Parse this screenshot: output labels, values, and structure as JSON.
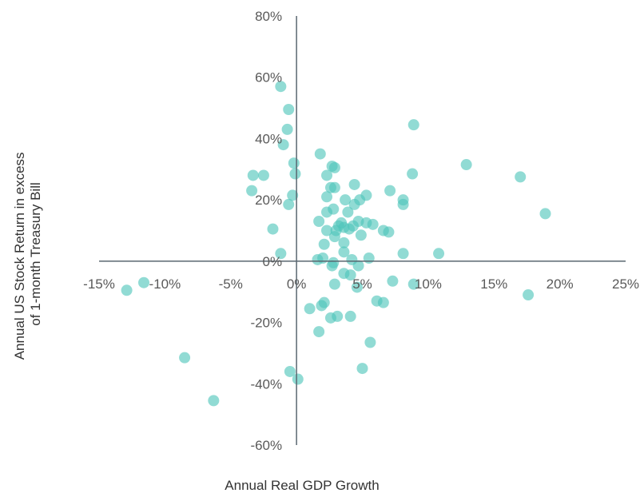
{
  "chart_data": {
    "type": "scatter",
    "title": "",
    "xlabel": "Annual Real GDP Growth",
    "ylabel_lines": [
      "Annual US Stock Return in excess",
      "of 1-month Treasury Bill"
    ],
    "xlim": [
      -15,
      25
    ],
    "ylim": [
      -60,
      80
    ],
    "x_ticks": [
      -15,
      -10,
      -5,
      0,
      5,
      10,
      15,
      20,
      25
    ],
    "y_ticks": [
      80,
      60,
      40,
      20,
      0,
      -20,
      -40,
      -60
    ],
    "x_tick_labels": [
      "-15%",
      "-10%",
      "-5%",
      "0%",
      "5%",
      "10%",
      "15%",
      "20%",
      "25%"
    ],
    "y_tick_labels": [
      "80%",
      "60%",
      "40%",
      "20%",
      "0%",
      "-20%",
      "-40%",
      "-60%"
    ],
    "grid": false,
    "legend": "none",
    "colors": {
      "point": "#4ec5b9",
      "axis": "#5a6770",
      "text": "#595959"
    },
    "points": [
      {
        "x": -1.2,
        "y": 57
      },
      {
        "x": -0.6,
        "y": 49.5
      },
      {
        "x": -0.7,
        "y": 43
      },
      {
        "x": 8.9,
        "y": 44.5
      },
      {
        "x": -1.0,
        "y": 38
      },
      {
        "x": 1.8,
        "y": 35
      },
      {
        "x": -0.2,
        "y": 32
      },
      {
        "x": 12.9,
        "y": 31.5
      },
      {
        "x": 2.7,
        "y": 31
      },
      {
        "x": 2.9,
        "y": 30.5
      },
      {
        "x": -3.3,
        "y": 28
      },
      {
        "x": -2.5,
        "y": 28
      },
      {
        "x": -0.1,
        "y": 28.5
      },
      {
        "x": 2.3,
        "y": 28
      },
      {
        "x": 8.8,
        "y": 28.5
      },
      {
        "x": 17.0,
        "y": 27.5
      },
      {
        "x": 4.4,
        "y": 25
      },
      {
        "x": 2.6,
        "y": 24
      },
      {
        "x": 2.9,
        "y": 24
      },
      {
        "x": -3.4,
        "y": 23
      },
      {
        "x": 7.1,
        "y": 23
      },
      {
        "x": -0.3,
        "y": 21.5
      },
      {
        "x": 2.3,
        "y": 21
      },
      {
        "x": 5.3,
        "y": 21.5
      },
      {
        "x": 3.7,
        "y": 20
      },
      {
        "x": 4.8,
        "y": 20
      },
      {
        "x": 8.1,
        "y": 20
      },
      {
        "x": 4.4,
        "y": 18.5
      },
      {
        "x": -0.6,
        "y": 18.5
      },
      {
        "x": 8.1,
        "y": 18.5
      },
      {
        "x": 2.3,
        "y": 16
      },
      {
        "x": 2.8,
        "y": 17
      },
      {
        "x": 3.9,
        "y": 16
      },
      {
        "x": 18.9,
        "y": 15.5
      },
      {
        "x": 1.7,
        "y": 13
      },
      {
        "x": 3.4,
        "y": 12.5
      },
      {
        "x": 4.7,
        "y": 13
      },
      {
        "x": 5.3,
        "y": 12.5
      },
      {
        "x": 5.8,
        "y": 12
      },
      {
        "x": 3.2,
        "y": 11.5
      },
      {
        "x": 3.6,
        "y": 11
      },
      {
        "x": 4.3,
        "y": 11.5
      },
      {
        "x": 2.3,
        "y": 10
      },
      {
        "x": 3.0,
        "y": 10
      },
      {
        "x": 4.0,
        "y": 10.5
      },
      {
        "x": 6.6,
        "y": 10
      },
      {
        "x": 7.0,
        "y": 9.5
      },
      {
        "x": -1.8,
        "y": 10.5
      },
      {
        "x": 2.9,
        "y": 8
      },
      {
        "x": 4.9,
        "y": 8.5
      },
      {
        "x": 2.1,
        "y": 5.5
      },
      {
        "x": 3.6,
        "y": 6
      },
      {
        "x": -1.2,
        "y": 2.5
      },
      {
        "x": 3.6,
        "y": 3
      },
      {
        "x": 8.1,
        "y": 2.5
      },
      {
        "x": 10.8,
        "y": 2.5
      },
      {
        "x": 1.6,
        "y": 0.5
      },
      {
        "x": 2.0,
        "y": 1
      },
      {
        "x": 2.8,
        "y": -0.5
      },
      {
        "x": 4.2,
        "y": 0.5
      },
      {
        "x": 5.5,
        "y": 1
      },
      {
        "x": 2.7,
        "y": -1.5
      },
      {
        "x": 4.7,
        "y": -1.5
      },
      {
        "x": 3.6,
        "y": -4
      },
      {
        "x": 4.1,
        "y": -4.5
      },
      {
        "x": 2.9,
        "y": -7.5
      },
      {
        "x": 4.6,
        "y": -8.5
      },
      {
        "x": 7.3,
        "y": -6.5
      },
      {
        "x": 8.9,
        "y": -7.5
      },
      {
        "x": -12.9,
        "y": -9.5
      },
      {
        "x": -11.6,
        "y": -7
      },
      {
        "x": 17.6,
        "y": -11
      },
      {
        "x": 6.1,
        "y": -13
      },
      {
        "x": 6.6,
        "y": -13.5
      },
      {
        "x": 2.1,
        "y": -13.5
      },
      {
        "x": 1.9,
        "y": -14.5
      },
      {
        "x": 1.0,
        "y": -15.5
      },
      {
        "x": 2.6,
        "y": -18.5
      },
      {
        "x": 3.1,
        "y": -18
      },
      {
        "x": 4.1,
        "y": -18
      },
      {
        "x": 1.7,
        "y": -23
      },
      {
        "x": 5.6,
        "y": -26.5
      },
      {
        "x": -8.5,
        "y": -31.5
      },
      {
        "x": -0.5,
        "y": -36
      },
      {
        "x": 5.0,
        "y": -35
      },
      {
        "x": 0.1,
        "y": -38.5
      },
      {
        "x": -6.3,
        "y": -45.5
      }
    ]
  }
}
